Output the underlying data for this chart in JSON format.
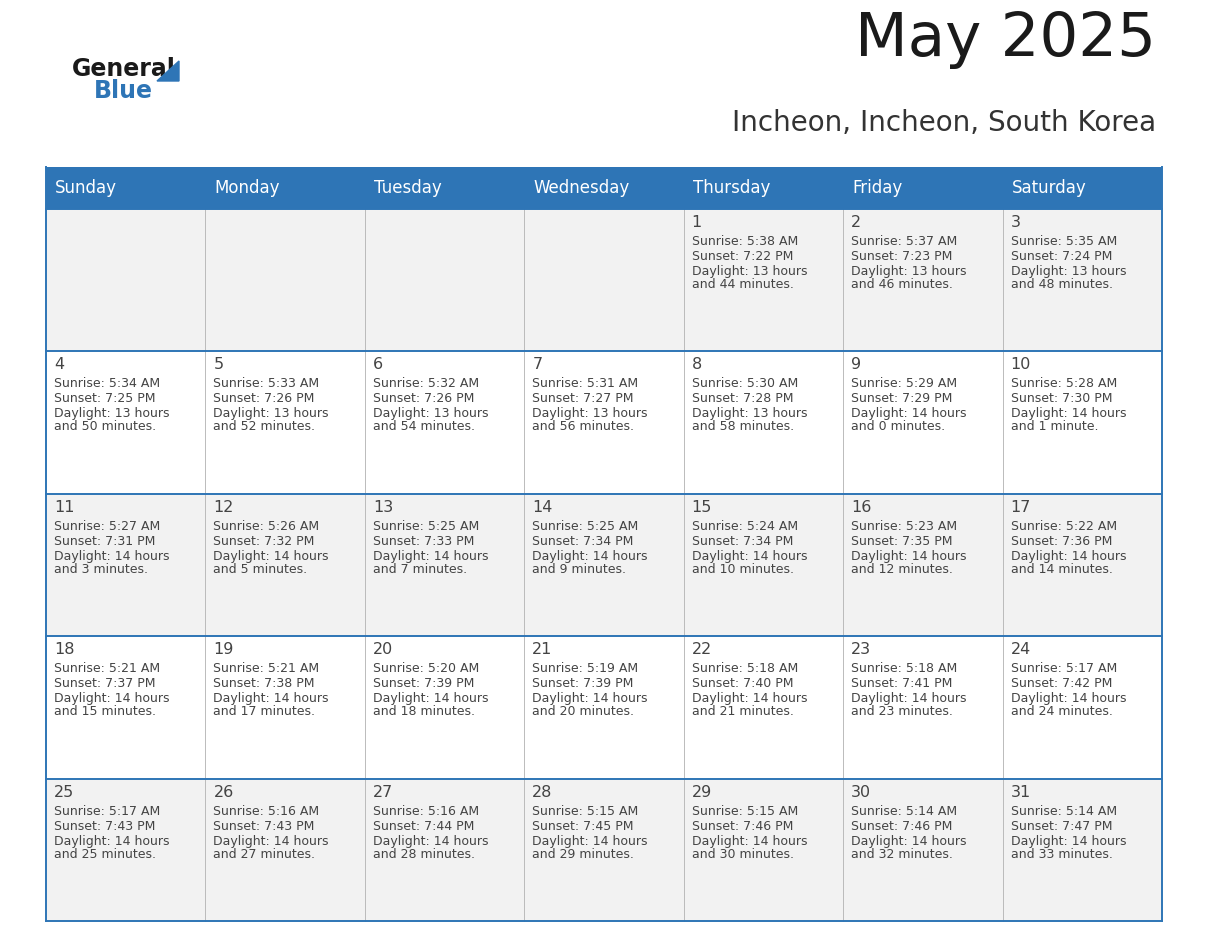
{
  "title": "May 2025",
  "subtitle": "Incheon, Incheon, South Korea",
  "header_bg": "#2E75B6",
  "header_text_color": "#FFFFFF",
  "weekdays": [
    "Sunday",
    "Monday",
    "Tuesday",
    "Wednesday",
    "Thursday",
    "Friday",
    "Saturday"
  ],
  "row_bg_odd": "#F2F2F2",
  "row_bg_even": "#FFFFFF",
  "border_color": "#2E75B6",
  "cell_border_color": "#AAAAAA",
  "text_color": "#444444",
  "days": [
    {
      "date": 1,
      "col": 4,
      "row": 0,
      "sunrise": "5:38 AM",
      "sunset": "7:22 PM",
      "daylight": "13 hours and 44 minutes."
    },
    {
      "date": 2,
      "col": 5,
      "row": 0,
      "sunrise": "5:37 AM",
      "sunset": "7:23 PM",
      "daylight": "13 hours and 46 minutes."
    },
    {
      "date": 3,
      "col": 6,
      "row": 0,
      "sunrise": "5:35 AM",
      "sunset": "7:24 PM",
      "daylight": "13 hours and 48 minutes."
    },
    {
      "date": 4,
      "col": 0,
      "row": 1,
      "sunrise": "5:34 AM",
      "sunset": "7:25 PM",
      "daylight": "13 hours and 50 minutes."
    },
    {
      "date": 5,
      "col": 1,
      "row": 1,
      "sunrise": "5:33 AM",
      "sunset": "7:26 PM",
      "daylight": "13 hours and 52 minutes."
    },
    {
      "date": 6,
      "col": 2,
      "row": 1,
      "sunrise": "5:32 AM",
      "sunset": "7:26 PM",
      "daylight": "13 hours and 54 minutes."
    },
    {
      "date": 7,
      "col": 3,
      "row": 1,
      "sunrise": "5:31 AM",
      "sunset": "7:27 PM",
      "daylight": "13 hours and 56 minutes."
    },
    {
      "date": 8,
      "col": 4,
      "row": 1,
      "sunrise": "5:30 AM",
      "sunset": "7:28 PM",
      "daylight": "13 hours and 58 minutes."
    },
    {
      "date": 9,
      "col": 5,
      "row": 1,
      "sunrise": "5:29 AM",
      "sunset": "7:29 PM",
      "daylight": "14 hours and 0 minutes."
    },
    {
      "date": 10,
      "col": 6,
      "row": 1,
      "sunrise": "5:28 AM",
      "sunset": "7:30 PM",
      "daylight": "14 hours and 1 minute."
    },
    {
      "date": 11,
      "col": 0,
      "row": 2,
      "sunrise": "5:27 AM",
      "sunset": "7:31 PM",
      "daylight": "14 hours and 3 minutes."
    },
    {
      "date": 12,
      "col": 1,
      "row": 2,
      "sunrise": "5:26 AM",
      "sunset": "7:32 PM",
      "daylight": "14 hours and 5 minutes."
    },
    {
      "date": 13,
      "col": 2,
      "row": 2,
      "sunrise": "5:25 AM",
      "sunset": "7:33 PM",
      "daylight": "14 hours and 7 minutes."
    },
    {
      "date": 14,
      "col": 3,
      "row": 2,
      "sunrise": "5:25 AM",
      "sunset": "7:34 PM",
      "daylight": "14 hours and 9 minutes."
    },
    {
      "date": 15,
      "col": 4,
      "row": 2,
      "sunrise": "5:24 AM",
      "sunset": "7:34 PM",
      "daylight": "14 hours and 10 minutes."
    },
    {
      "date": 16,
      "col": 5,
      "row": 2,
      "sunrise": "5:23 AM",
      "sunset": "7:35 PM",
      "daylight": "14 hours and 12 minutes."
    },
    {
      "date": 17,
      "col": 6,
      "row": 2,
      "sunrise": "5:22 AM",
      "sunset": "7:36 PM",
      "daylight": "14 hours and 14 minutes."
    },
    {
      "date": 18,
      "col": 0,
      "row": 3,
      "sunrise": "5:21 AM",
      "sunset": "7:37 PM",
      "daylight": "14 hours and 15 minutes."
    },
    {
      "date": 19,
      "col": 1,
      "row": 3,
      "sunrise": "5:21 AM",
      "sunset": "7:38 PM",
      "daylight": "14 hours and 17 minutes."
    },
    {
      "date": 20,
      "col": 2,
      "row": 3,
      "sunrise": "5:20 AM",
      "sunset": "7:39 PM",
      "daylight": "14 hours and 18 minutes."
    },
    {
      "date": 21,
      "col": 3,
      "row": 3,
      "sunrise": "5:19 AM",
      "sunset": "7:39 PM",
      "daylight": "14 hours and 20 minutes."
    },
    {
      "date": 22,
      "col": 4,
      "row": 3,
      "sunrise": "5:18 AM",
      "sunset": "7:40 PM",
      "daylight": "14 hours and 21 minutes."
    },
    {
      "date": 23,
      "col": 5,
      "row": 3,
      "sunrise": "5:18 AM",
      "sunset": "7:41 PM",
      "daylight": "14 hours and 23 minutes."
    },
    {
      "date": 24,
      "col": 6,
      "row": 3,
      "sunrise": "5:17 AM",
      "sunset": "7:42 PM",
      "daylight": "14 hours and 24 minutes."
    },
    {
      "date": 25,
      "col": 0,
      "row": 4,
      "sunrise": "5:17 AM",
      "sunset": "7:43 PM",
      "daylight": "14 hours and 25 minutes."
    },
    {
      "date": 26,
      "col": 1,
      "row": 4,
      "sunrise": "5:16 AM",
      "sunset": "7:43 PM",
      "daylight": "14 hours and 27 minutes."
    },
    {
      "date": 27,
      "col": 2,
      "row": 4,
      "sunrise": "5:16 AM",
      "sunset": "7:44 PM",
      "daylight": "14 hours and 28 minutes."
    },
    {
      "date": 28,
      "col": 3,
      "row": 4,
      "sunrise": "5:15 AM",
      "sunset": "7:45 PM",
      "daylight": "14 hours and 29 minutes."
    },
    {
      "date": 29,
      "col": 4,
      "row": 4,
      "sunrise": "5:15 AM",
      "sunset": "7:46 PM",
      "daylight": "14 hours and 30 minutes."
    },
    {
      "date": 30,
      "col": 5,
      "row": 4,
      "sunrise": "5:14 AM",
      "sunset": "7:46 PM",
      "daylight": "14 hours and 32 minutes."
    },
    {
      "date": 31,
      "col": 6,
      "row": 4,
      "sunrise": "5:14 AM",
      "sunset": "7:47 PM",
      "daylight": "14 hours and 33 minutes."
    }
  ]
}
